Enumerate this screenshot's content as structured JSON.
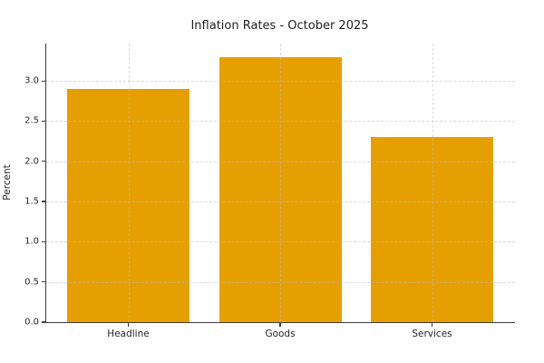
{
  "chart_data": {
    "type": "bar",
    "title": "Inflation Rates - October 2025",
    "xlabel": "",
    "ylabel": "Percent",
    "categories": [
      "Headline",
      "Goods",
      "Services"
    ],
    "values": [
      2.9,
      3.3,
      2.3
    ],
    "ytick_labels": [
      "0.0",
      "0.5",
      "1.0",
      "1.5",
      "2.0",
      "2.5",
      "3.0"
    ],
    "yticks": [
      0.0,
      0.5,
      1.0,
      1.5,
      2.0,
      2.5,
      3.0
    ],
    "ylim": [
      0,
      3.465
    ],
    "bar_color": "#E69F00",
    "grid": "dashed, light gray, horizontal at ticks and vertical at category centers",
    "legend_position": "none"
  }
}
